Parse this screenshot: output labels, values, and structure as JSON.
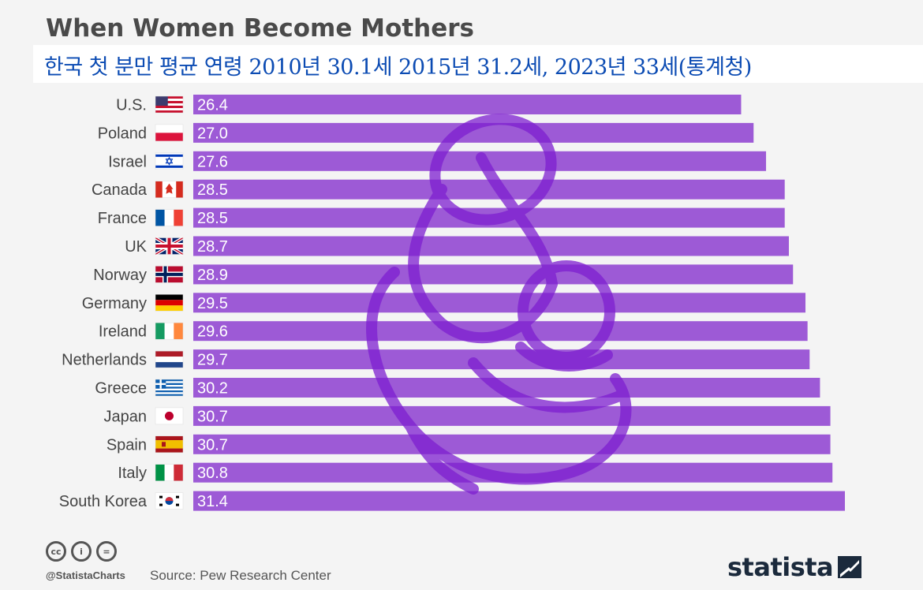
{
  "title": "When Women Become Mothers",
  "subtitle": "한국 첫 분만 평균 연령 2010년 30.1세 2015년 31.2세, 2023년 33세(통계청)",
  "colors": {
    "bar": "#9d5ad6",
    "watermark": "#7e1fd0",
    "label": "#ffffff",
    "country": "#444444"
  },
  "chart_data": {
    "type": "bar",
    "orientation": "horizontal",
    "title": "When Women Become Mothers",
    "categories": [
      "U.S.",
      "Poland",
      "Israel",
      "Canada",
      "France",
      "UK",
      "Norway",
      "Germany",
      "Ireland",
      "Netherlands",
      "Greece",
      "Japan",
      "Spain",
      "Italy",
      "South Korea"
    ],
    "flags": [
      "us",
      "pl",
      "il",
      "ca",
      "fr",
      "uk",
      "no",
      "de",
      "ie",
      "nl",
      "gr",
      "jp",
      "es",
      "it",
      "kr"
    ],
    "values": [
      26.4,
      27.0,
      27.6,
      28.5,
      28.5,
      28.7,
      28.9,
      29.5,
      29.6,
      29.7,
      30.2,
      30.7,
      30.7,
      30.8,
      31.4
    ],
    "value_labels": [
      "26.4",
      "27.0",
      "27.6",
      "28.5",
      "28.5",
      "28.7",
      "28.9",
      "29.5",
      "29.6",
      "29.7",
      "30.2",
      "30.7",
      "30.7",
      "30.8",
      "31.4"
    ],
    "xlim": [
      0,
      31.4
    ],
    "xlabel": "",
    "ylabel": ""
  },
  "footer": {
    "cc_icons": [
      "cc",
      "i",
      "="
    ],
    "handle": "@StatistaCharts",
    "source": "Source: Pew Research Center",
    "brand": "statista"
  }
}
